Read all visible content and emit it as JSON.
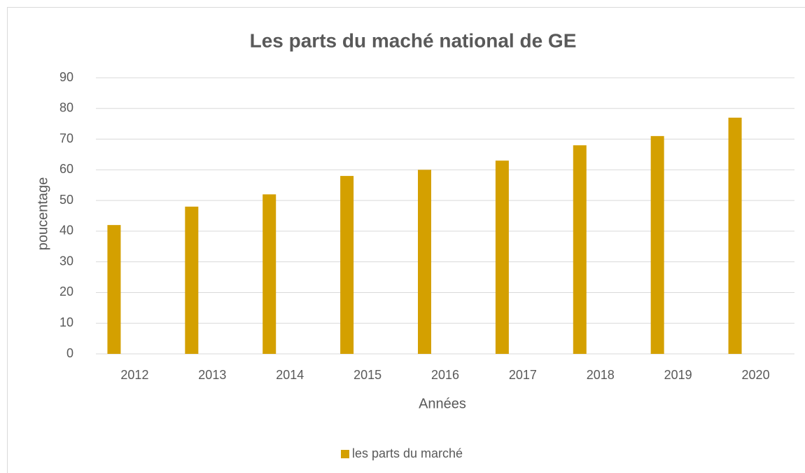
{
  "chart_data": {
    "type": "bar",
    "title": "Les parts du maché national de GE",
    "x_label": "Années",
    "y_label": "poucentage",
    "categories": [
      "2012",
      "2013",
      "2014",
      "2015",
      "2016",
      "2017",
      "2018",
      "2019",
      "2020"
    ],
    "series": [
      {
        "name": "les parts du marché",
        "color": "#d4a000",
        "values": [
          42,
          48,
          52,
          58,
          60,
          63,
          68,
          71,
          77
        ]
      }
    ],
    "ylim": [
      0,
      90
    ],
    "yticks": [
      0,
      10,
      20,
      30,
      40,
      50,
      60,
      70,
      80,
      90
    ],
    "grid": true,
    "legend": "bottom"
  }
}
